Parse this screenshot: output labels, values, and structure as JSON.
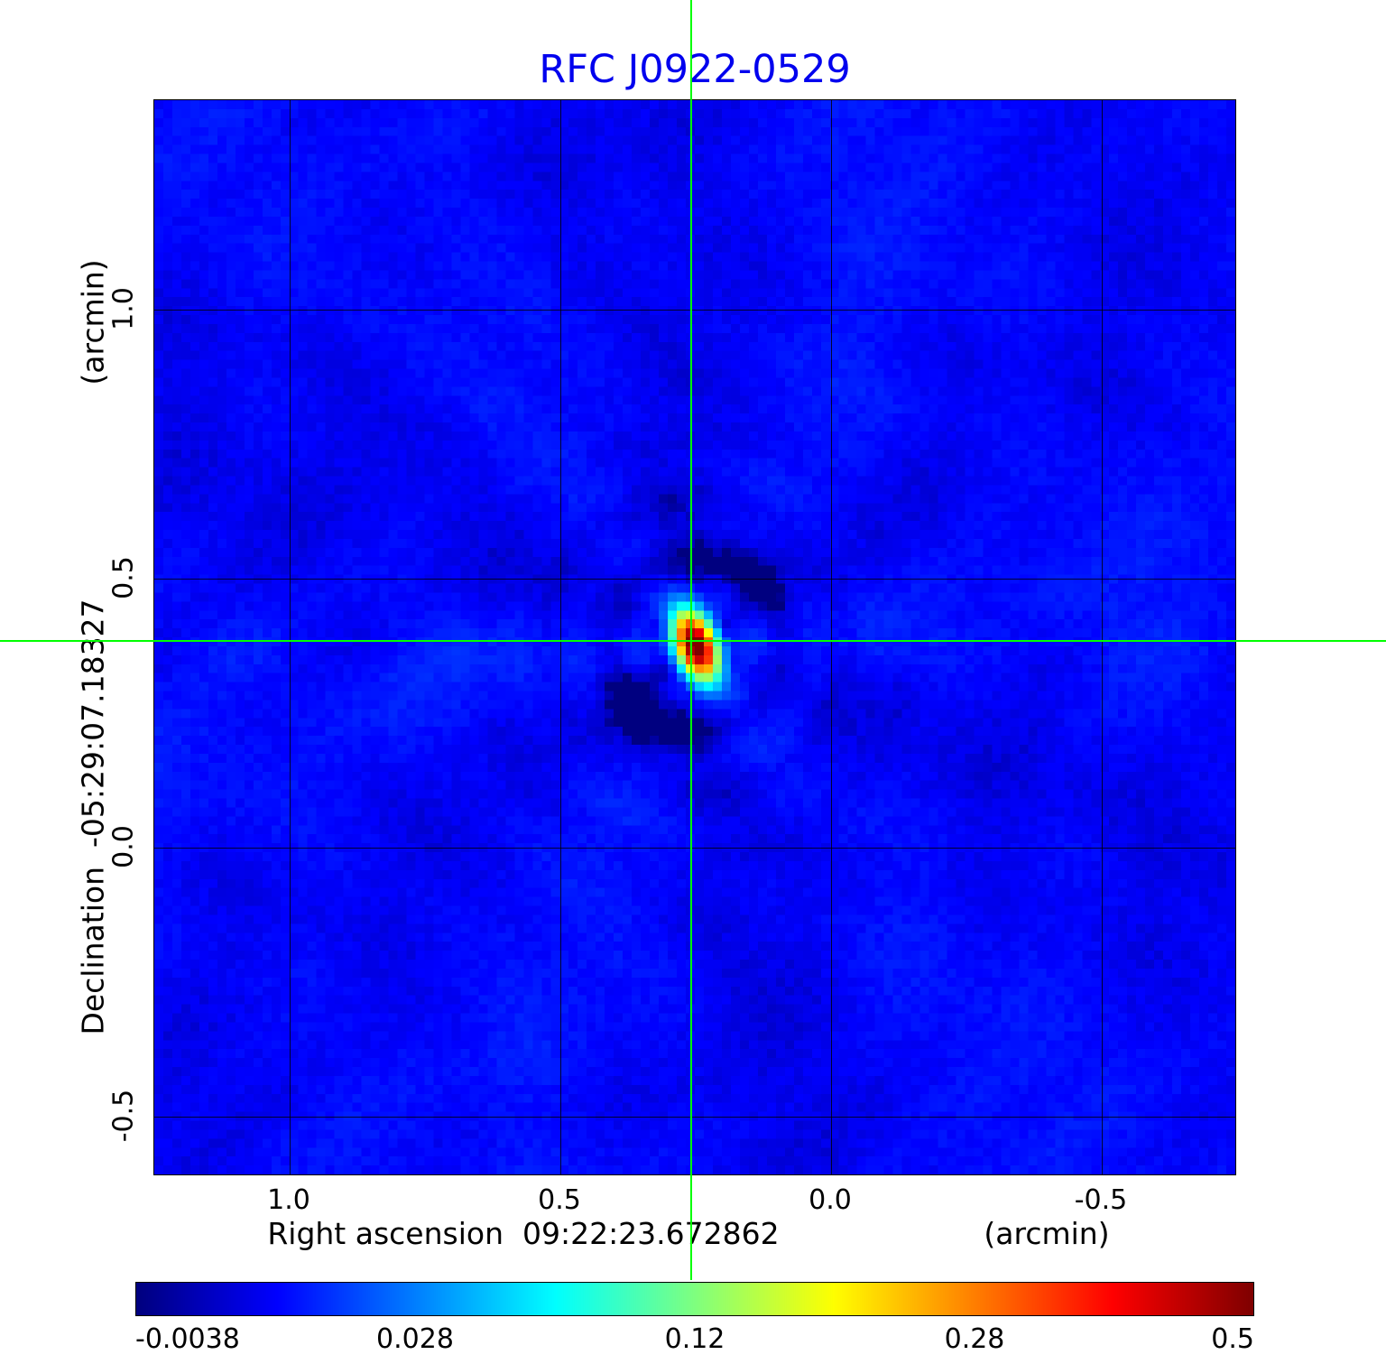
{
  "title": "RFC J0922-0529",
  "title_color": "#0000ee",
  "axes": {
    "y_unit_label": "(arcmin)",
    "y_axis_label": "Declination  -05:29:07.18327",
    "y_ticks": [
      "1.0",
      "0.5",
      "0.0",
      "-0.5"
    ],
    "x_ticks": [
      "1.0",
      "0.5",
      "0.0",
      "-0.5"
    ],
    "x_axis_label": "Right ascension  09:22:23.672862",
    "x_unit_label": "(arcmin)"
  },
  "colorbar": {
    "tick_labels": [
      "-0.0038",
      "0.028",
      "0.12",
      "0.28",
      "0.5"
    ]
  },
  "chart_data": {
    "type": "heatmap",
    "title": "RFC J0922-0529",
    "xlabel": "Right ascension 09:22:23.672862 (arcmin)",
    "ylabel": "Declination -05:29:07.18327 (arcmin)",
    "colormap": "jet",
    "scale": "sqrt",
    "value_range": [
      -0.0038,
      0.5
    ],
    "colorbar_tick_values": [
      -0.0038,
      0.028,
      0.12,
      0.28,
      0.5
    ],
    "x_range": [
      1.25,
      -0.75
    ],
    "y_range": [
      1.39,
      -0.61
    ],
    "x_tick_values": [
      1.0,
      0.5,
      0.0,
      -0.5
    ],
    "y_tick_values": [
      1.0,
      0.5,
      0.0,
      -0.5
    ],
    "grid": true,
    "background_level": 0.004,
    "source": {
      "x_arcmin": 0.256,
      "y_arcmin": 0.383,
      "peak": 0.5,
      "position_angle_deg": 20,
      "crosshair_color": "#00ff00"
    }
  }
}
